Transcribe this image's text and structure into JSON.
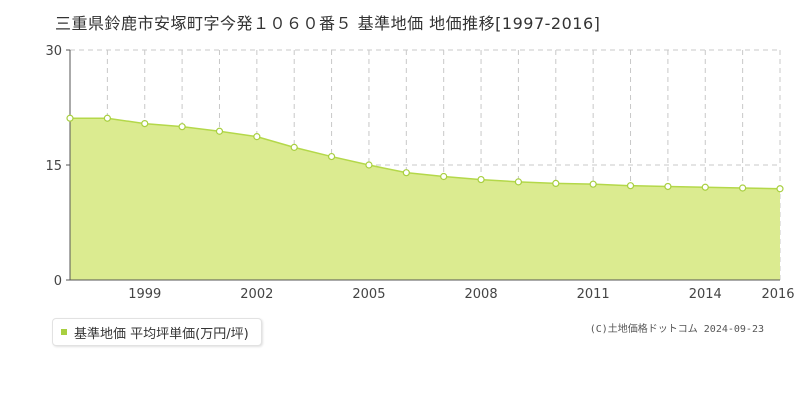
{
  "title": "三重県鈴鹿市安塚町字今発１０６０番５ 基準地価 地価推移[1997-2016]",
  "legend": {
    "label": "基準地価 平均坪単価(万円/坪)"
  },
  "copyright": "(C)土地価格ドットコム 2024-09-23",
  "colors": {
    "area": "#dbeb90",
    "line": "#b4d84a",
    "marker_stroke": "#a8cf40",
    "marker_fill": "#ffffff",
    "grid": "#c8c8c8"
  },
  "chart_data": {
    "type": "area",
    "x": [
      1997,
      1998,
      1999,
      2000,
      2001,
      2002,
      2003,
      2004,
      2005,
      2006,
      2007,
      2008,
      2009,
      2010,
      2011,
      2012,
      2013,
      2014,
      2015,
      2016
    ],
    "series": [
      {
        "values": [
          21.1,
          21.1,
          20.4,
          20.0,
          19.4,
          18.7,
          17.3,
          16.1,
          15.0,
          14.0,
          13.5,
          13.1,
          12.8,
          12.6,
          12.5,
          12.3,
          12.2,
          12.1,
          12.0,
          11.9
        ]
      }
    ],
    "yticks": [
      "0",
      "15",
      "30"
    ],
    "xticks": [
      "1999",
      "2002",
      "2005",
      "2008",
      "2011",
      "2014",
      "2016"
    ],
    "ylim": [
      0,
      30
    ],
    "xlim": [
      1997,
      2016
    ],
    "grid": true
  }
}
